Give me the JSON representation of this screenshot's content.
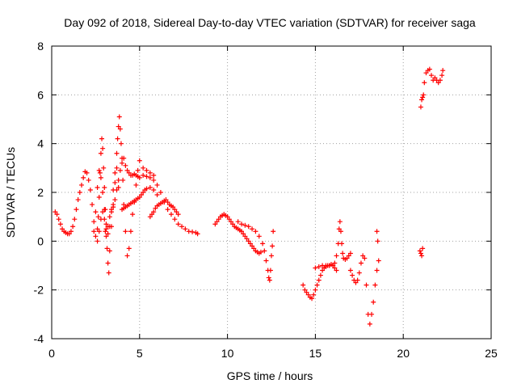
{
  "chart_data": {
    "type": "scatter",
    "title": "Day 092 of 2018, Sidereal Day-to-day VTEC variation (SDTVAR) for receiver saga",
    "xlabel": "GPS time / hours",
    "ylabel": "SDTVAR / TECUs",
    "xlim": [
      0,
      25
    ],
    "ylim": [
      -4,
      8
    ],
    "xticks": [
      "0",
      "5",
      "10",
      "15",
      "20",
      "25"
    ],
    "yticks": [
      "-4",
      "-2",
      "0",
      "2",
      "4",
      "6",
      "8"
    ],
    "grid": true,
    "marker": "+",
    "color": "#ff0000",
    "series": [
      {
        "name": "SDTVAR",
        "x": [
          0.2,
          0.3,
          0.4,
          0.5,
          0.6,
          0.7,
          0.8,
          0.9,
          1.0,
          1.1,
          1.2,
          1.3,
          1.4,
          1.5,
          1.6,
          1.7,
          1.8,
          1.9,
          2.0,
          2.1,
          2.2,
          2.3,
          2.4,
          2.5,
          2.6,
          2.7,
          2.8,
          2.9,
          3.0,
          3.05,
          3.1,
          3.2,
          3.3,
          3.4,
          3.5,
          3.6,
          3.7,
          3.8,
          3.9,
          4.0,
          4.1,
          4.2,
          4.3,
          4.4,
          4.5,
          4.6,
          4.7,
          4.8,
          4.9,
          5.0,
          5.2,
          5.4,
          5.6,
          5.8,
          6.0,
          6.2,
          6.4,
          6.6,
          6.8,
          7.0,
          7.2,
          7.4,
          7.6,
          7.8,
          8.0,
          8.2,
          8.3,
          2.6,
          2.65,
          2.7,
          2.75,
          2.8,
          2.85,
          2.9,
          2.95,
          3.0,
          3.05,
          3.1,
          3.15,
          3.2,
          3.25,
          3.3,
          3.4,
          3.5,
          3.6,
          3.7,
          3.8,
          2.4,
          2.5,
          2.6,
          2.7,
          2.8,
          2.9,
          3.0,
          3.1,
          3.2,
          3.3,
          3.4,
          3.5,
          3.6,
          3.7,
          3.75,
          3.8,
          3.85,
          3.9,
          3.95,
          4.0,
          4.05,
          4.1,
          4.2,
          4.3,
          4.4,
          4.5,
          4.6,
          4.7,
          4.8,
          4.9,
          5.0,
          5.2,
          5.4,
          5.6,
          5.8,
          4.0,
          4.1,
          4.2,
          4.3,
          4.4,
          4.5,
          4.6,
          4.7,
          4.8,
          4.9,
          5.0,
          5.1,
          5.2,
          5.3,
          5.4,
          5.6,
          5.8,
          6.0,
          5.6,
          5.7,
          5.8,
          5.9,
          6.0,
          6.1,
          6.2,
          6.3,
          6.4,
          6.5,
          6.6,
          6.7,
          6.8,
          6.9,
          7.0,
          7.1,
          7.2,
          9.3,
          9.4,
          9.5,
          9.6,
          9.7,
          9.8,
          9.9,
          10.0,
          10.1,
          10.2,
          10.3,
          10.4,
          10.5,
          10.6,
          10.7,
          10.8,
          10.9,
          11.0,
          11.1,
          11.2,
          11.3,
          11.4,
          11.5,
          11.6,
          11.7,
          11.8,
          11.9,
          10.6,
          10.8,
          11.0,
          11.2,
          11.4,
          11.6,
          11.8,
          12.0,
          12.1,
          12.2,
          12.3,
          12.35,
          12.4,
          12.45,
          12.5,
          12.55,
          12.6,
          14.3,
          14.4,
          14.5,
          14.6,
          14.7,
          14.8,
          14.9,
          15.0,
          15.1,
          15.2,
          15.3,
          15.4,
          15.5,
          15.6,
          15.7,
          15.8,
          15.9,
          16.0,
          16.1,
          16.2,
          15.0,
          15.2,
          15.4,
          15.6,
          15.8,
          16.0,
          16.1,
          16.2,
          16.3,
          16.35,
          16.4,
          16.45,
          16.5,
          16.55,
          16.6,
          16.7,
          16.8,
          16.9,
          17.0,
          17.0,
          17.1,
          17.2,
          17.3,
          17.4,
          17.5,
          17.6,
          17.7,
          17.8,
          17.9,
          18.0,
          18.1,
          18.2,
          18.3,
          18.4,
          18.5,
          18.6,
          18.5,
          18.55,
          20.95,
          21.0,
          21.05,
          21.1,
          21.0,
          21.05,
          21.1,
          21.15,
          21.2,
          21.3,
          21.4,
          21.5,
          21.6,
          21.7,
          21.8,
          21.9,
          22.0,
          22.1,
          22.2,
          22.25
        ],
        "y": [
          1.2,
          1.1,
          0.9,
          0.7,
          0.5,
          0.4,
          0.35,
          0.3,
          0.3,
          0.4,
          0.6,
          0.9,
          1.3,
          1.7,
          2.0,
          2.3,
          2.6,
          2.85,
          2.8,
          2.5,
          2.1,
          1.5,
          0.8,
          0.2,
          0.0,
          0.4,
          0.9,
          1.2,
          0.9,
          0.4,
          0.2,
          0.6,
          1.0,
          1.2,
          1.4,
          1.7,
          2.1,
          2.5,
          2.9,
          3.2,
          3.4,
          3.1,
          2.9,
          2.8,
          2.7,
          2.7,
          2.75,
          2.7,
          2.65,
          2.6,
          2.7,
          2.65,
          2.6,
          2.5,
          2.3,
          2.0,
          1.6,
          1.3,
          1.1,
          0.9,
          0.7,
          0.6,
          0.5,
          0.4,
          0.38,
          0.35,
          0.3,
          0.5,
          1.0,
          1.8,
          2.8,
          3.6,
          4.2,
          3.8,
          3.0,
          2.2,
          1.3,
          0.5,
          -0.3,
          -0.9,
          -1.3,
          -0.4,
          0.6,
          1.5,
          2.4,
          3.0,
          2.2,
          0.4,
          1.2,
          2.2,
          2.9,
          2.6,
          2.0,
          1.3,
          0.7,
          0.3,
          0.6,
          1.3,
          2.1,
          2.8,
          3.6,
          4.2,
          4.7,
          5.1,
          4.6,
          4.0,
          3.4,
          2.5,
          1.5,
          0.4,
          -0.6,
          -0.3,
          0.4,
          1.1,
          1.6,
          2.3,
          2.9,
          3.3,
          3.0,
          2.9,
          2.8,
          2.7,
          1.3,
          1.35,
          1.4,
          1.45,
          1.5,
          1.55,
          1.6,
          1.65,
          1.7,
          1.75,
          1.8,
          1.9,
          2.0,
          2.1,
          2.15,
          2.2,
          2.1,
          1.9,
          1.0,
          1.1,
          1.2,
          1.35,
          1.45,
          1.5,
          1.55,
          1.6,
          1.65,
          1.7,
          1.6,
          1.5,
          1.45,
          1.4,
          1.3,
          1.2,
          1.1,
          0.7,
          0.8,
          0.9,
          1.0,
          1.05,
          1.1,
          1.05,
          1.0,
          0.9,
          0.8,
          0.7,
          0.6,
          0.55,
          0.5,
          0.45,
          0.4,
          0.3,
          0.2,
          0.1,
          0.0,
          -0.1,
          -0.2,
          -0.3,
          -0.4,
          -0.45,
          -0.5,
          -0.45,
          0.8,
          0.7,
          0.65,
          0.6,
          0.5,
          0.4,
          0.2,
          -0.1,
          -0.4,
          -0.8,
          -1.2,
          -1.5,
          -1.6,
          -1.2,
          -0.6,
          -0.2,
          0.4,
          -1.8,
          -2.0,
          -2.1,
          -2.2,
          -2.3,
          -2.35,
          -2.2,
          -2.0,
          -1.8,
          -1.6,
          -1.4,
          -1.2,
          -1.1,
          -1.05,
          -1.0,
          -1.0,
          -0.95,
          -1.0,
          -1.1,
          -1.2,
          -1.1,
          -1.05,
          -1.0,
          -1.0,
          -1.0,
          -1.0,
          -0.9,
          -0.6,
          -0.1,
          0.5,
          0.8,
          0.4,
          -0.1,
          -0.5,
          -0.7,
          -0.75,
          -0.7,
          -0.6,
          -0.5,
          -1.2,
          -1.4,
          -1.6,
          -1.7,
          -1.6,
          -1.3,
          -0.9,
          -0.6,
          -0.7,
          -1.8,
          -3.0,
          -3.4,
          -3.0,
          -2.5,
          -1.8,
          -1.2,
          -0.8,
          0.4,
          0.0,
          -0.4,
          -0.5,
          -0.6,
          -0.3,
          5.5,
          5.8,
          5.9,
          6.0,
          6.5,
          6.9,
          7.0,
          7.05,
          6.8,
          6.6,
          6.7,
          6.6,
          6.5,
          6.6,
          6.8,
          7.0
        ]
      }
    ]
  }
}
